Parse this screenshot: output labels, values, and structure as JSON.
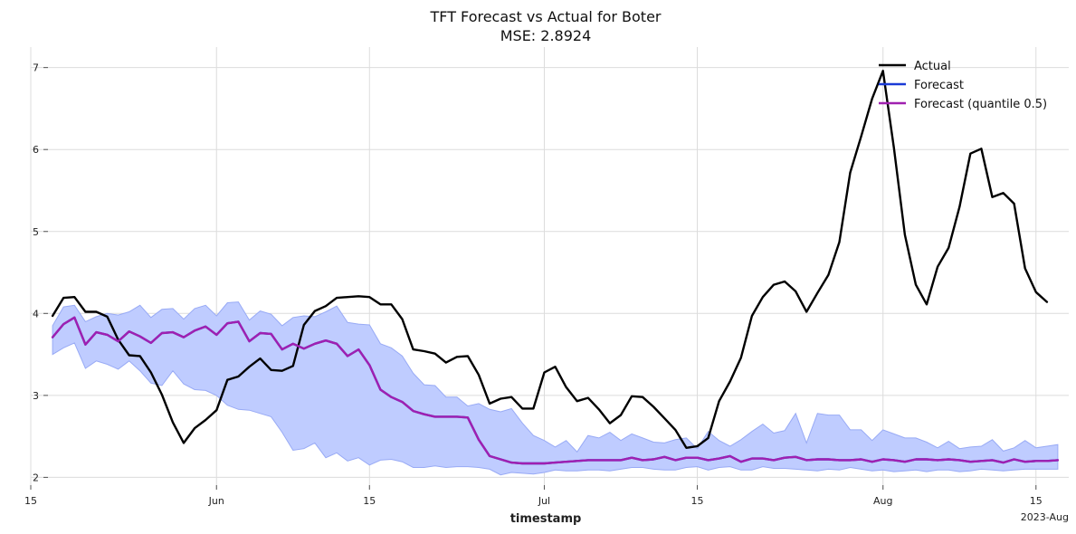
{
  "chart_data": {
    "type": "line",
    "title": "TFT Forecast vs Actual for Boter",
    "subtitle": "MSE: 2.8924",
    "xlabel": "timestamp",
    "ylabel": "",
    "x_tick_labels": [
      "15",
      "Jun",
      "15",
      "Jul",
      "15",
      "Aug",
      "15"
    ],
    "x_tick_dates": [
      "2023-05-15",
      "2023-06-01",
      "2023-06-15",
      "2023-07-01",
      "2023-07-15",
      "2023-08-01",
      "2023-08-15"
    ],
    "x_offset_label": "2023-Aug",
    "y_ticks": [
      2,
      3,
      4,
      5,
      6,
      7
    ],
    "xlim": [
      "2023-05-15",
      "2023-08-18"
    ],
    "ylim": [
      1.85,
      7.25
    ],
    "grid": true,
    "legend_position": "top-right",
    "x": [
      "2023-05-17",
      "2023-05-18",
      "2023-05-19",
      "2023-05-20",
      "2023-05-21",
      "2023-05-22",
      "2023-05-23",
      "2023-05-24",
      "2023-05-25",
      "2023-05-26",
      "2023-05-27",
      "2023-05-28",
      "2023-05-29",
      "2023-05-30",
      "2023-05-31",
      "2023-06-01",
      "2023-06-02",
      "2023-06-03",
      "2023-06-04",
      "2023-06-05",
      "2023-06-06",
      "2023-06-07",
      "2023-06-08",
      "2023-06-09",
      "2023-06-10",
      "2023-06-11",
      "2023-06-12",
      "2023-06-13",
      "2023-06-14",
      "2023-06-15",
      "2023-06-16",
      "2023-06-17",
      "2023-06-18",
      "2023-06-19",
      "2023-06-20",
      "2023-06-21",
      "2023-06-22",
      "2023-06-23",
      "2023-06-24",
      "2023-06-25",
      "2023-06-26",
      "2023-06-27",
      "2023-06-28",
      "2023-06-29",
      "2023-06-30",
      "2023-07-01",
      "2023-07-02",
      "2023-07-03",
      "2023-07-04",
      "2023-07-05",
      "2023-07-06",
      "2023-07-07",
      "2023-07-08",
      "2023-07-09",
      "2023-07-10",
      "2023-07-11",
      "2023-07-12",
      "2023-07-13",
      "2023-07-14",
      "2023-07-15",
      "2023-07-16",
      "2023-07-17",
      "2023-07-18",
      "2023-07-19",
      "2023-07-20",
      "2023-07-21",
      "2023-07-22",
      "2023-07-23",
      "2023-07-24",
      "2023-07-25",
      "2023-07-26",
      "2023-07-27",
      "2023-07-28",
      "2023-07-29",
      "2023-07-30",
      "2023-07-31",
      "2023-08-01",
      "2023-08-02",
      "2023-08-03",
      "2023-08-04",
      "2023-08-05",
      "2023-08-06",
      "2023-08-07",
      "2023-08-08",
      "2023-08-09",
      "2023-08-10",
      "2023-08-11",
      "2023-08-12",
      "2023-08-13",
      "2023-08-14",
      "2023-08-15",
      "2023-08-16",
      "2023-08-17"
    ],
    "series": [
      {
        "name": "Actual",
        "color": "#000000",
        "values": [
          3.97,
          4.19,
          4.2,
          4.02,
          4.02,
          3.96,
          3.68,
          3.49,
          3.48,
          3.28,
          3.01,
          2.67,
          2.42,
          2.6,
          2.7,
          2.82,
          3.19,
          3.23,
          3.35,
          3.45,
          3.31,
          3.3,
          3.36,
          3.86,
          4.03,
          4.09,
          4.19,
          4.2,
          4.21,
          4.2,
          4.11,
          4.11,
          3.93,
          3.56,
          3.54,
          3.51,
          3.4,
          3.47,
          3.48,
          3.25,
          2.9,
          2.96,
          2.98,
          2.84,
          2.84,
          3.28,
          3.35,
          3.1,
          2.93,
          2.97,
          2.83,
          2.66,
          2.76,
          2.99,
          2.98,
          2.86,
          2.72,
          2.58,
          2.36,
          2.38,
          2.48,
          2.93,
          3.17,
          3.46,
          3.97,
          4.2,
          4.35,
          4.39,
          4.27,
          4.02,
          4.25,
          4.47,
          4.87,
          5.72,
          6.16,
          6.62,
          6.96,
          6.02,
          4.96,
          4.35,
          4.11,
          4.57,
          4.8,
          5.3,
          5.95,
          6.01,
          5.42,
          5.47,
          5.34,
          4.55,
          4.26,
          4.14,
          null
        ]
      },
      {
        "name": "Forecast",
        "color": "#1a3ad6",
        "values": [
          3.71,
          3.87,
          3.95,
          3.62,
          3.77,
          3.74,
          3.66,
          3.78,
          3.72,
          3.64,
          3.76,
          3.77,
          3.71,
          3.79,
          3.84,
          3.74,
          3.88,
          3.9,
          3.66,
          3.76,
          3.75,
          3.56,
          3.63,
          3.57,
          3.63,
          3.67,
          3.63,
          3.48,
          3.56,
          3.37,
          3.07,
          2.98,
          2.92,
          2.81,
          2.77,
          2.74,
          2.74,
          2.74,
          2.73,
          2.46,
          2.26,
          2.22,
          2.18,
          2.17,
          2.17,
          2.17,
          2.18,
          2.19,
          2.2,
          2.21,
          2.21,
          2.21,
          2.21,
          2.24,
          2.21,
          2.22,
          2.25,
          2.21,
          2.24,
          2.24,
          2.21,
          2.23,
          2.26,
          2.19,
          2.23,
          2.23,
          2.21,
          2.24,
          2.25,
          2.21,
          2.22,
          2.22,
          2.21,
          2.21,
          2.22,
          2.19,
          2.22,
          2.21,
          2.19,
          2.22,
          2.22,
          2.21,
          2.22,
          2.21,
          2.19,
          2.2,
          2.21,
          2.18,
          2.22,
          2.19,
          2.2,
          2.2,
          2.21
        ]
      },
      {
        "name": "Forecast (quantile 0.5)",
        "color": "#a020b0",
        "values": [
          3.71,
          3.87,
          3.95,
          3.62,
          3.77,
          3.74,
          3.66,
          3.78,
          3.72,
          3.64,
          3.76,
          3.77,
          3.71,
          3.79,
          3.84,
          3.74,
          3.88,
          3.9,
          3.66,
          3.76,
          3.75,
          3.56,
          3.63,
          3.57,
          3.63,
          3.67,
          3.63,
          3.48,
          3.56,
          3.37,
          3.07,
          2.98,
          2.92,
          2.81,
          2.77,
          2.74,
          2.74,
          2.74,
          2.73,
          2.46,
          2.26,
          2.22,
          2.18,
          2.17,
          2.17,
          2.17,
          2.18,
          2.19,
          2.2,
          2.21,
          2.21,
          2.21,
          2.21,
          2.24,
          2.21,
          2.22,
          2.25,
          2.21,
          2.24,
          2.24,
          2.21,
          2.23,
          2.26,
          2.19,
          2.23,
          2.23,
          2.21,
          2.24,
          2.25,
          2.21,
          2.22,
          2.22,
          2.21,
          2.21,
          2.22,
          2.19,
          2.22,
          2.21,
          2.19,
          2.22,
          2.22,
          2.21,
          2.22,
          2.21,
          2.19,
          2.2,
          2.21,
          2.18,
          2.22,
          2.19,
          2.2,
          2.2,
          2.21
        ]
      }
    ],
    "band": {
      "color": "#bfccff",
      "edge_color": "#98aaf5",
      "upper": [
        3.85,
        4.08,
        4.1,
        3.9,
        3.96,
        4.0,
        3.98,
        4.02,
        4.1,
        3.95,
        4.05,
        4.06,
        3.93,
        4.06,
        4.1,
        3.97,
        4.13,
        4.14,
        3.92,
        4.03,
        3.99,
        3.85,
        3.95,
        3.97,
        3.96,
        4.02,
        4.09,
        3.89,
        3.87,
        3.86,
        3.63,
        3.58,
        3.48,
        3.27,
        3.13,
        3.12,
        2.98,
        2.98,
        2.87,
        2.9,
        2.83,
        2.8,
        2.84,
        2.66,
        2.51,
        2.45,
        2.37,
        2.45,
        2.31,
        2.51,
        2.48,
        2.55,
        2.45,
        2.53,
        2.48,
        2.43,
        2.42,
        2.46,
        2.48,
        2.35,
        2.56,
        2.45,
        2.38,
        2.46,
        2.56,
        2.65,
        2.54,
        2.57,
        2.78,
        2.42,
        2.78,
        2.76,
        2.76,
        2.58,
        2.58,
        2.45,
        2.58,
        2.53,
        2.48,
        2.48,
        2.43,
        2.36,
        2.44,
        2.35,
        2.37,
        2.38,
        2.46,
        2.32,
        2.36,
        2.45,
        2.36,
        2.38,
        2.4
      ],
      "lower": [
        3.5,
        3.58,
        3.64,
        3.33,
        3.42,
        3.38,
        3.32,
        3.42,
        3.3,
        3.15,
        3.12,
        3.3,
        3.14,
        3.07,
        3.06,
        3.0,
        2.88,
        2.83,
        2.82,
        2.78,
        2.74,
        2.55,
        2.33,
        2.35,
        2.42,
        2.24,
        2.3,
        2.2,
        2.24,
        2.15,
        2.21,
        2.22,
        2.19,
        2.12,
        2.12,
        2.14,
        2.12,
        2.13,
        2.13,
        2.12,
        2.1,
        2.03,
        2.06,
        2.05,
        2.04,
        2.06,
        2.09,
        2.08,
        2.08,
        2.09,
        2.09,
        2.08,
        2.1,
        2.12,
        2.12,
        2.1,
        2.09,
        2.09,
        2.12,
        2.13,
        2.09,
        2.12,
        2.13,
        2.09,
        2.09,
        2.13,
        2.11,
        2.11,
        2.1,
        2.09,
        2.08,
        2.1,
        2.09,
        2.12,
        2.1,
        2.08,
        2.09,
        2.07,
        2.08,
        2.09,
        2.07,
        2.09,
        2.09,
        2.07,
        2.08,
        2.1,
        2.09,
        2.08,
        2.09,
        2.1,
        2.1,
        2.1,
        2.1
      ]
    }
  }
}
